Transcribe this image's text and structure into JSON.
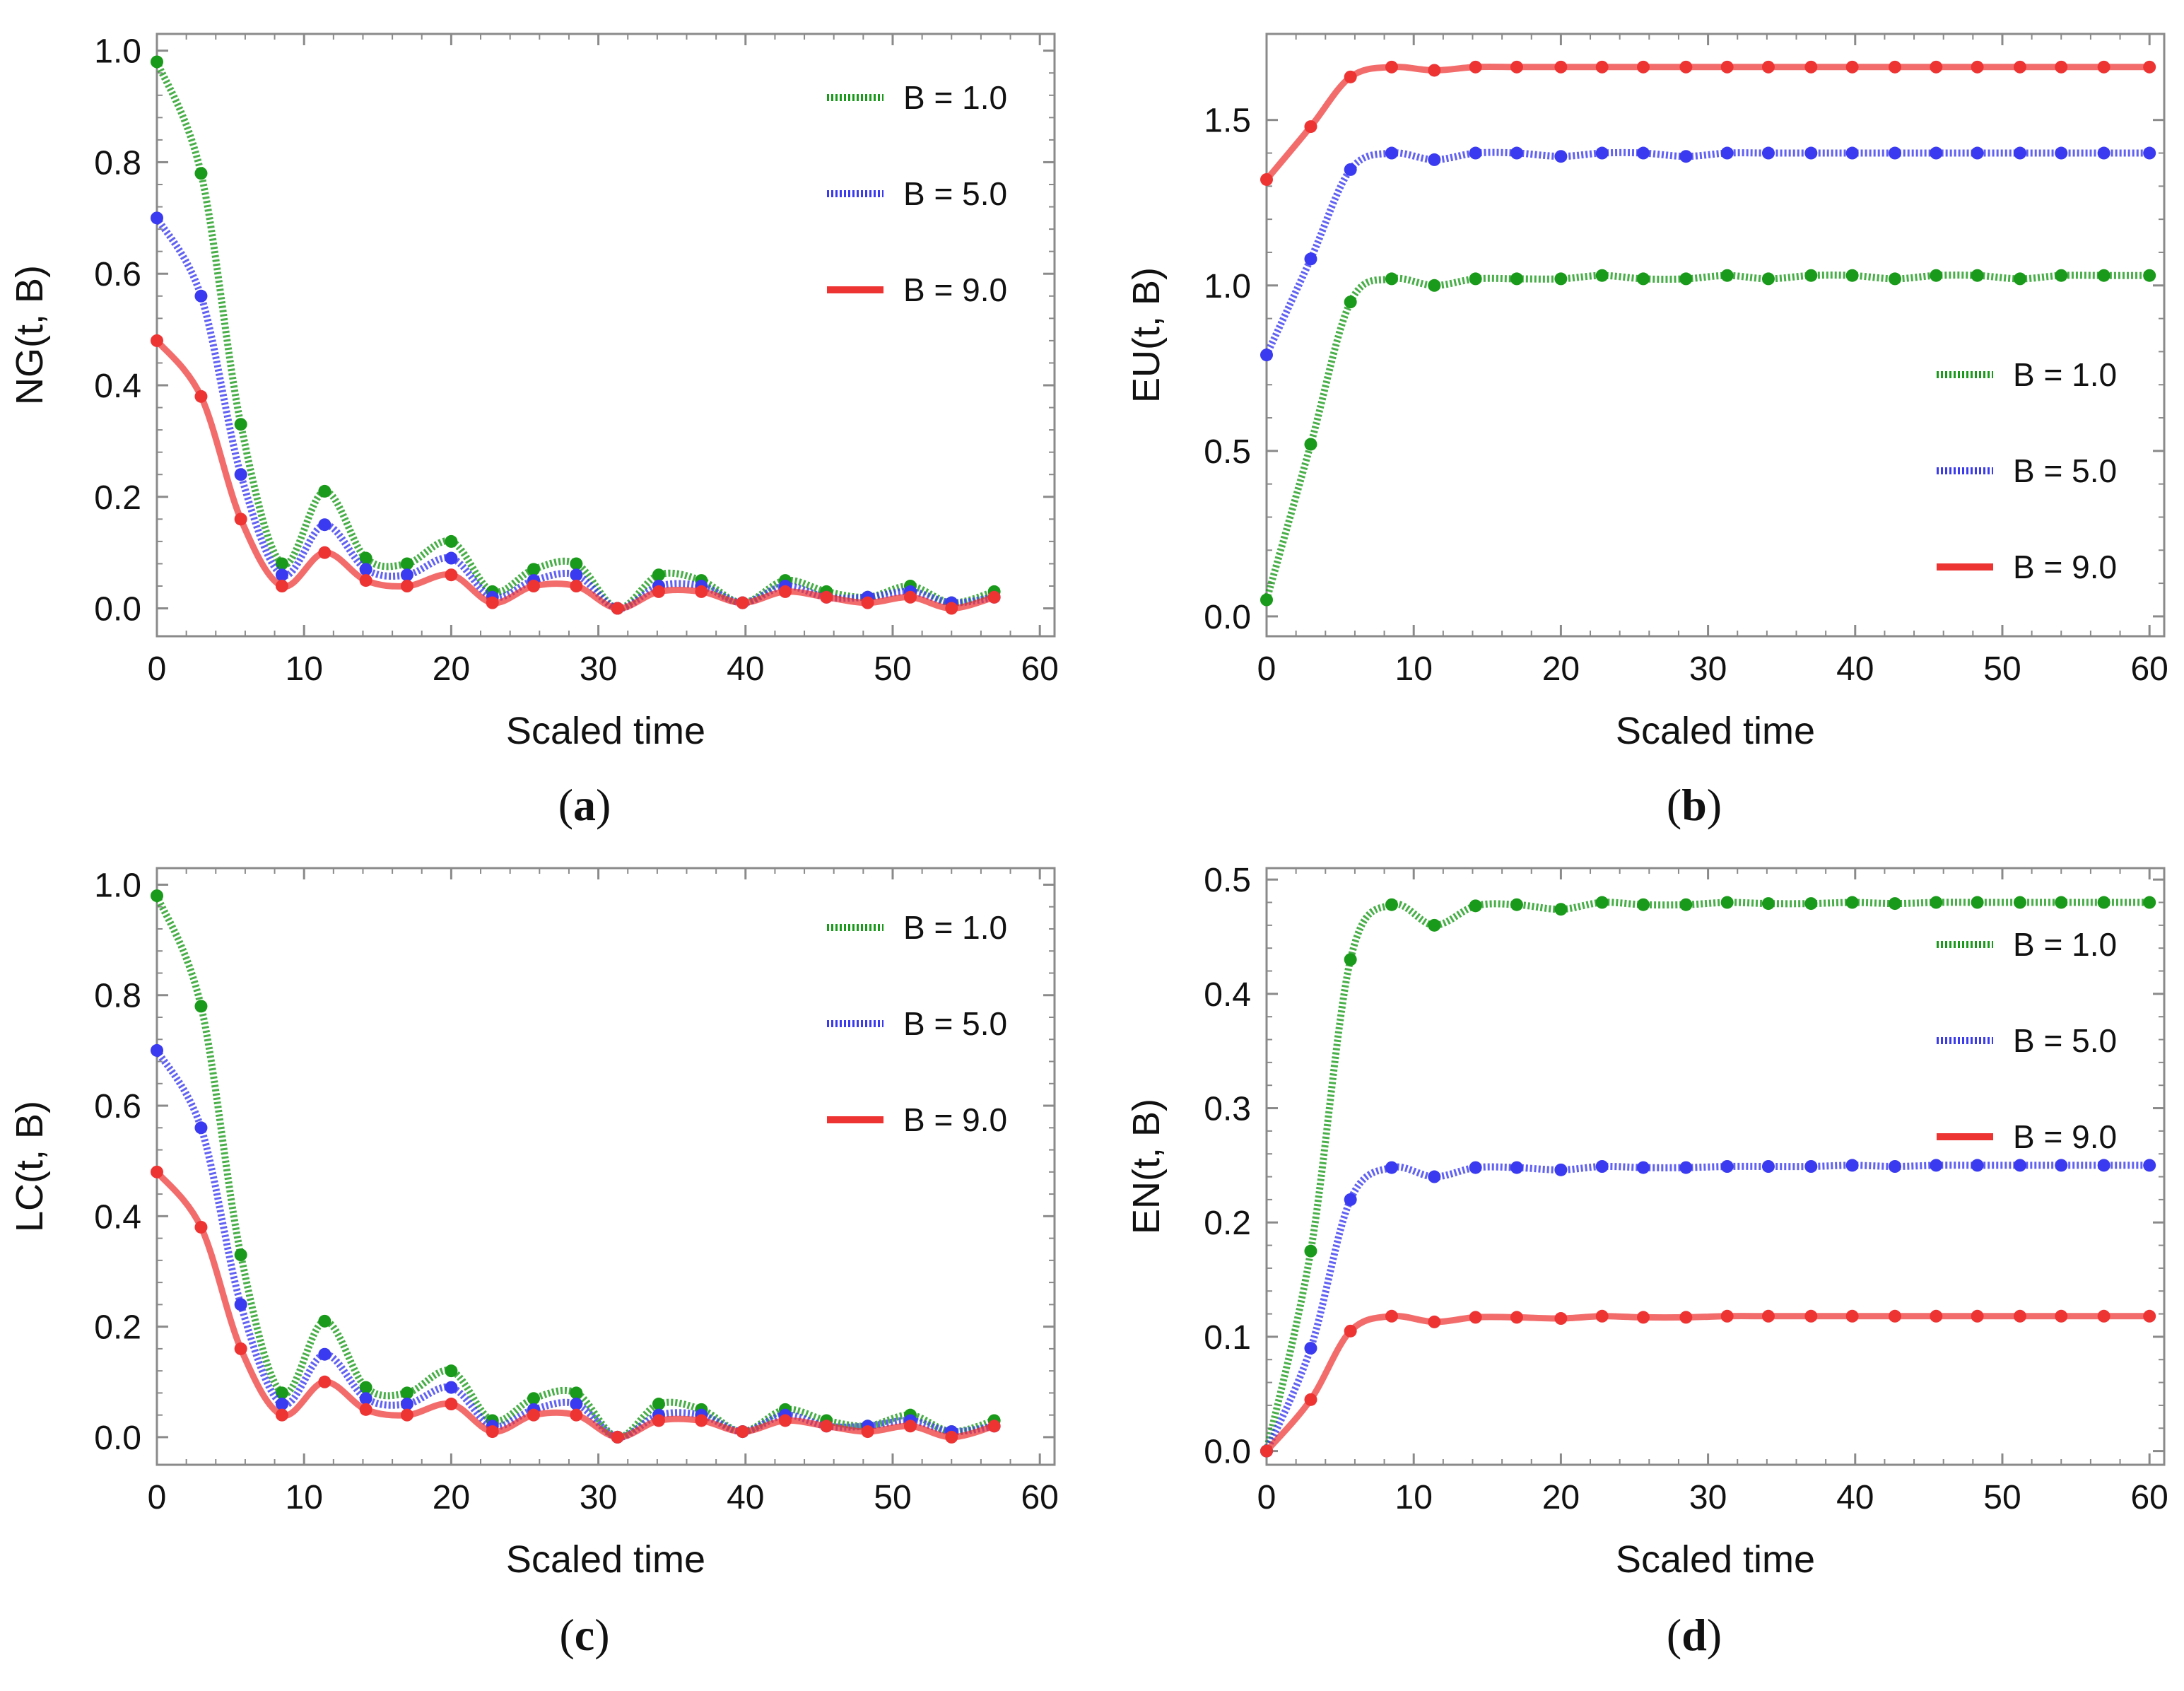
{
  "chart_data": [
    {
      "type": "line",
      "panel_caption": "(a)",
      "caption_letter": "a",
      "xlabel": "Scaled time",
      "ylabel": "NG(t, B)",
      "xlim": [
        0,
        61
      ],
      "ylim": [
        -0.05,
        1.03
      ],
      "xticks": [
        0,
        10,
        20,
        30,
        40,
        50,
        60
      ],
      "yticks": [
        0.0,
        0.2,
        0.4,
        0.6,
        0.8,
        1.0
      ],
      "xtick_labels": [
        "0",
        "10",
        "20",
        "30",
        "40",
        "50",
        "60"
      ],
      "ytick_labels": [
        "0.0",
        "0.2",
        "0.4",
        "0.6",
        "0.8",
        "1.0"
      ],
      "grid": false,
      "legend_position": "top-right",
      "series": [
        {
          "name": "B = 1.0",
          "color": "#1a9a1a",
          "style": "dotted",
          "x": [
            0,
            3,
            5.7,
            8.5,
            11.4,
            14.2,
            17,
            20,
            22.8,
            25.6,
            28.5,
            31.3,
            34.1,
            37,
            39.8,
            42.7,
            45.5,
            48.3,
            51.2,
            54,
            56.9
          ],
          "y": [
            0.98,
            0.78,
            0.33,
            0.08,
            0.21,
            0.09,
            0.08,
            0.12,
            0.03,
            0.07,
            0.08,
            0.0,
            0.06,
            0.05,
            0.01,
            0.05,
            0.03,
            0.02,
            0.04,
            0.01,
            0.03
          ]
        },
        {
          "name": "B = 5.0",
          "color": "#3a3af0",
          "style": "dotted",
          "x": [
            0,
            3,
            5.7,
            8.5,
            11.4,
            14.2,
            17,
            20,
            22.8,
            25.6,
            28.5,
            31.3,
            34.1,
            37,
            39.8,
            42.7,
            45.5,
            48.3,
            51.2,
            54,
            56.9
          ],
          "y": [
            0.7,
            0.56,
            0.24,
            0.06,
            0.15,
            0.07,
            0.06,
            0.09,
            0.02,
            0.05,
            0.06,
            0.0,
            0.04,
            0.04,
            0.01,
            0.04,
            0.02,
            0.02,
            0.03,
            0.01,
            0.02
          ]
        },
        {
          "name": "B = 9.0",
          "color": "#ee3333",
          "style": "solid",
          "x": [
            0,
            3,
            5.7,
            8.5,
            11.4,
            14.2,
            17,
            20,
            22.8,
            25.6,
            28.5,
            31.3,
            34.1,
            37,
            39.8,
            42.7,
            45.5,
            48.3,
            51.2,
            54,
            56.9
          ],
          "y": [
            0.48,
            0.38,
            0.16,
            0.04,
            0.1,
            0.05,
            0.04,
            0.06,
            0.01,
            0.04,
            0.04,
            0.0,
            0.03,
            0.03,
            0.01,
            0.03,
            0.02,
            0.01,
            0.02,
            0.0,
            0.02
          ]
        }
      ]
    },
    {
      "type": "line",
      "panel_caption": "(b)",
      "caption_letter": "b",
      "xlabel": "Scaled time",
      "ylabel": "EU(t, B)",
      "xlim": [
        0,
        61
      ],
      "ylim": [
        -0.06,
        1.76
      ],
      "xticks": [
        0,
        10,
        20,
        30,
        40,
        50,
        60
      ],
      "yticks": [
        0.0,
        0.5,
        1.0,
        1.5
      ],
      "xtick_labels": [
        "0",
        "10",
        "20",
        "30",
        "40",
        "50",
        "60"
      ],
      "ytick_labels": [
        "0.0",
        "0.5",
        "1.0",
        "1.5"
      ],
      "grid": false,
      "legend_position": "middle-right",
      "series": [
        {
          "name": "B = 1.0",
          "color": "#1a9a1a",
          "style": "dotted",
          "x": [
            0,
            3,
            5.7,
            8.5,
            11.4,
            14.2,
            17,
            20,
            22.8,
            25.6,
            28.5,
            31.3,
            34.1,
            37,
            39.8,
            42.7,
            45.5,
            48.3,
            51.2,
            54,
            56.9,
            60
          ],
          "y": [
            0.05,
            0.52,
            0.95,
            1.02,
            1.0,
            1.02,
            1.02,
            1.02,
            1.03,
            1.02,
            1.02,
            1.03,
            1.02,
            1.03,
            1.03,
            1.02,
            1.03,
            1.03,
            1.02,
            1.03,
            1.03,
            1.03
          ]
        },
        {
          "name": "B = 5.0",
          "color": "#3a3af0",
          "style": "dotted",
          "x": [
            0,
            3,
            5.7,
            8.5,
            11.4,
            14.2,
            17,
            20,
            22.8,
            25.6,
            28.5,
            31.3,
            34.1,
            37,
            39.8,
            42.7,
            45.5,
            48.3,
            51.2,
            54,
            56.9,
            60
          ],
          "y": [
            0.79,
            1.08,
            1.35,
            1.4,
            1.38,
            1.4,
            1.4,
            1.39,
            1.4,
            1.4,
            1.39,
            1.4,
            1.4,
            1.4,
            1.4,
            1.4,
            1.4,
            1.4,
            1.4,
            1.4,
            1.4,
            1.4
          ]
        },
        {
          "name": "B = 9.0",
          "color": "#ee3333",
          "style": "solid",
          "x": [
            0,
            3,
            5.7,
            8.5,
            11.4,
            14.2,
            17,
            20,
            22.8,
            25.6,
            28.5,
            31.3,
            34.1,
            37,
            39.8,
            42.7,
            45.5,
            48.3,
            51.2,
            54,
            56.9,
            60
          ],
          "y": [
            1.32,
            1.48,
            1.63,
            1.66,
            1.65,
            1.66,
            1.66,
            1.66,
            1.66,
            1.66,
            1.66,
            1.66,
            1.66,
            1.66,
            1.66,
            1.66,
            1.66,
            1.66,
            1.66,
            1.66,
            1.66,
            1.66
          ]
        }
      ]
    },
    {
      "type": "line",
      "panel_caption": "(c)",
      "caption_letter": "c",
      "xlabel": "Scaled time",
      "ylabel": "LC(t, B)",
      "xlim": [
        0,
        61
      ],
      "ylim": [
        -0.05,
        1.03
      ],
      "xticks": [
        0,
        10,
        20,
        30,
        40,
        50,
        60
      ],
      "yticks": [
        0.0,
        0.2,
        0.4,
        0.6,
        0.8,
        1.0
      ],
      "xtick_labels": [
        "0",
        "10",
        "20",
        "30",
        "40",
        "50",
        "60"
      ],
      "ytick_labels": [
        "0.0",
        "0.2",
        "0.4",
        "0.6",
        "0.8",
        "1.0"
      ],
      "grid": false,
      "legend_position": "top-right",
      "series": [
        {
          "name": "B = 1.0",
          "color": "#1a9a1a",
          "style": "dotted",
          "x": [
            0,
            3,
            5.7,
            8.5,
            11.4,
            14.2,
            17,
            20,
            22.8,
            25.6,
            28.5,
            31.3,
            34.1,
            37,
            39.8,
            42.7,
            45.5,
            48.3,
            51.2,
            54,
            56.9
          ],
          "y": [
            0.98,
            0.78,
            0.33,
            0.08,
            0.21,
            0.09,
            0.08,
            0.12,
            0.03,
            0.07,
            0.08,
            0.0,
            0.06,
            0.05,
            0.01,
            0.05,
            0.03,
            0.02,
            0.04,
            0.01,
            0.03
          ]
        },
        {
          "name": "B = 5.0",
          "color": "#3a3af0",
          "style": "dotted",
          "x": [
            0,
            3,
            5.7,
            8.5,
            11.4,
            14.2,
            17,
            20,
            22.8,
            25.6,
            28.5,
            31.3,
            34.1,
            37,
            39.8,
            42.7,
            45.5,
            48.3,
            51.2,
            54,
            56.9
          ],
          "y": [
            0.7,
            0.56,
            0.24,
            0.06,
            0.15,
            0.07,
            0.06,
            0.09,
            0.02,
            0.05,
            0.06,
            0.0,
            0.04,
            0.04,
            0.01,
            0.04,
            0.02,
            0.02,
            0.03,
            0.01,
            0.02
          ]
        },
        {
          "name": "B = 9.0",
          "color": "#ee3333",
          "style": "solid",
          "x": [
            0,
            3,
            5.7,
            8.5,
            11.4,
            14.2,
            17,
            20,
            22.8,
            25.6,
            28.5,
            31.3,
            34.1,
            37,
            39.8,
            42.7,
            45.5,
            48.3,
            51.2,
            54,
            56.9
          ],
          "y": [
            0.48,
            0.38,
            0.16,
            0.04,
            0.1,
            0.05,
            0.04,
            0.06,
            0.01,
            0.04,
            0.04,
            0.0,
            0.03,
            0.03,
            0.01,
            0.03,
            0.02,
            0.01,
            0.02,
            0.0,
            0.02
          ]
        }
      ]
    },
    {
      "type": "line",
      "panel_caption": "(d)",
      "caption_letter": "d",
      "xlabel": "Scaled time",
      "ylabel": "EN(t, B)",
      "xlim": [
        0,
        61
      ],
      "ylim": [
        -0.012,
        0.51
      ],
      "xticks": [
        0,
        10,
        20,
        30,
        40,
        50,
        60
      ],
      "yticks": [
        0.0,
        0.1,
        0.2,
        0.3,
        0.4,
        0.5
      ],
      "xtick_labels": [
        "0",
        "10",
        "20",
        "30",
        "40",
        "50",
        "60"
      ],
      "ytick_labels": [
        "0.0",
        "0.1",
        "0.2",
        "0.3",
        "0.4",
        "0.5"
      ],
      "grid": false,
      "legend_position": "top-right",
      "series": [
        {
          "name": "B = 1.0",
          "color": "#1a9a1a",
          "style": "dotted",
          "x": [
            0,
            3,
            5.7,
            8.5,
            11.4,
            14.2,
            17,
            20,
            22.8,
            25.6,
            28.5,
            31.3,
            34.1,
            37,
            39.8,
            42.7,
            45.5,
            48.3,
            51.2,
            54,
            56.9,
            60
          ],
          "y": [
            0.0,
            0.175,
            0.43,
            0.478,
            0.46,
            0.477,
            0.478,
            0.474,
            0.48,
            0.478,
            0.478,
            0.48,
            0.479,
            0.479,
            0.48,
            0.479,
            0.48,
            0.48,
            0.48,
            0.48,
            0.48,
            0.48
          ]
        },
        {
          "name": "B = 5.0",
          "color": "#3a3af0",
          "style": "dotted",
          "x": [
            0,
            3,
            5.7,
            8.5,
            11.4,
            14.2,
            17,
            20,
            22.8,
            25.6,
            28.5,
            31.3,
            34.1,
            37,
            39.8,
            42.7,
            45.5,
            48.3,
            51.2,
            54,
            56.9,
            60
          ],
          "y": [
            0.0,
            0.09,
            0.22,
            0.248,
            0.24,
            0.248,
            0.248,
            0.246,
            0.249,
            0.248,
            0.248,
            0.249,
            0.249,
            0.249,
            0.25,
            0.249,
            0.25,
            0.25,
            0.25,
            0.25,
            0.25,
            0.25
          ]
        },
        {
          "name": "B = 9.0",
          "color": "#ee3333",
          "style": "solid",
          "x": [
            0,
            3,
            5.7,
            8.5,
            11.4,
            14.2,
            17,
            20,
            22.8,
            25.6,
            28.5,
            31.3,
            34.1,
            37,
            39.8,
            42.7,
            45.5,
            48.3,
            51.2,
            54,
            56.9,
            60
          ],
          "y": [
            0.0,
            0.045,
            0.105,
            0.118,
            0.113,
            0.117,
            0.117,
            0.116,
            0.118,
            0.117,
            0.117,
            0.118,
            0.118,
            0.118,
            0.118,
            0.118,
            0.118,
            0.118,
            0.118,
            0.118,
            0.118,
            0.118
          ]
        }
      ]
    }
  ]
}
